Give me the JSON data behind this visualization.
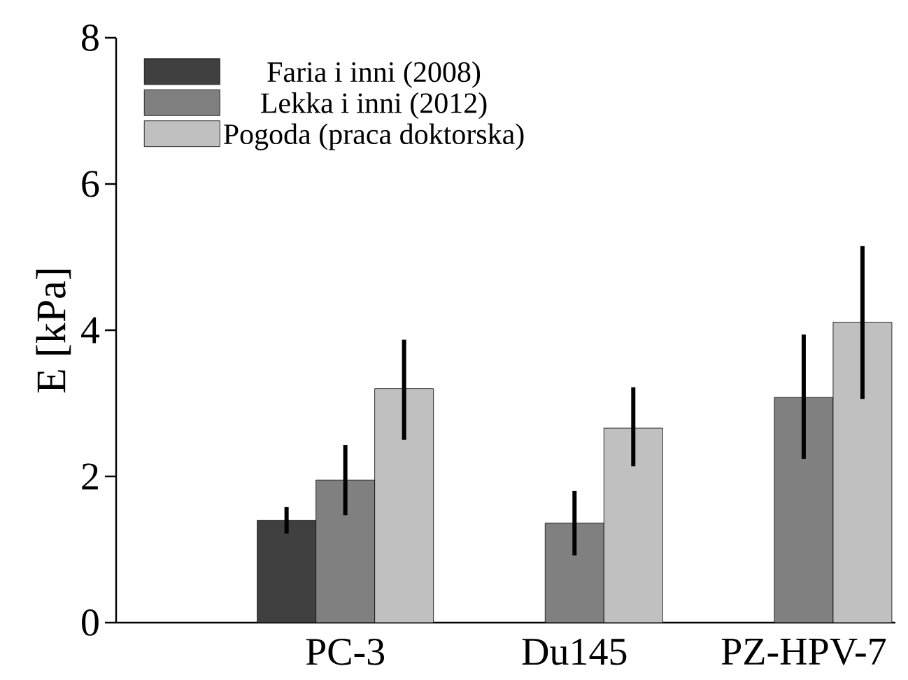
{
  "chart_data": {
    "type": "bar",
    "ylabel": "E [kPa]",
    "categories": [
      "PC-3",
      "Du145",
      "PZ-HPV-7"
    ],
    "series": [
      {
        "name": "Faria i inni (2008)",
        "color": "#404040",
        "values": [
          1.4,
          null,
          null
        ],
        "errors": [
          [
            1.22,
            1.58
          ],
          null,
          null
        ]
      },
      {
        "name": "Lekka i inni (2012)",
        "color": "#808080",
        "values": [
          1.95,
          1.36,
          3.08
        ],
        "errors": [
          [
            1.47,
            2.43
          ],
          [
            0.92,
            1.8
          ],
          [
            2.24,
            3.94
          ]
        ]
      },
      {
        "name": "Pogoda (praca doktorska)",
        "color": "#c0c0c0",
        "values": [
          3.2,
          2.66,
          4.11
        ],
        "errors": [
          [
            2.5,
            3.87
          ],
          [
            2.14,
            3.22
          ],
          [
            3.06,
            5.15
          ]
        ]
      }
    ],
    "ylim": [
      0,
      8
    ],
    "yticks": [
      0,
      2,
      4,
      6,
      8
    ],
    "legend": "top left"
  }
}
